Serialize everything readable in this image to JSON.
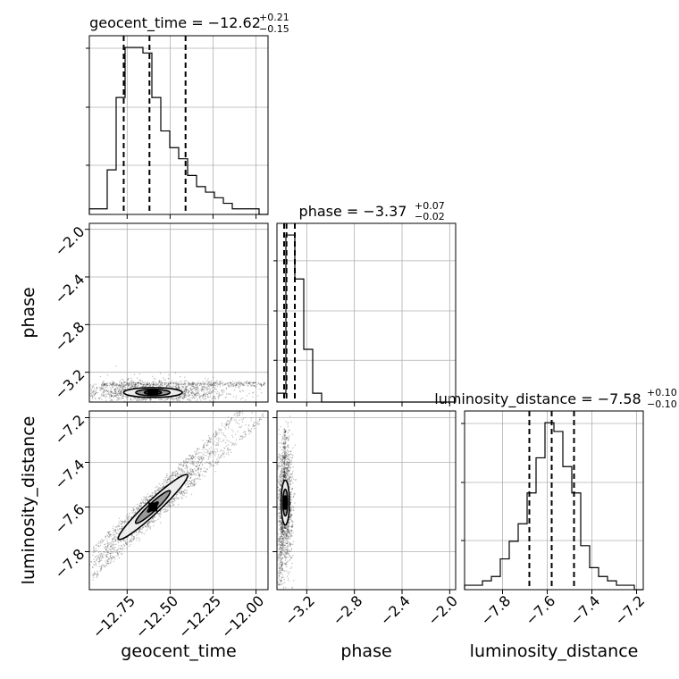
{
  "chart_data": {
    "type": "corner",
    "parameters": [
      "geocent_time",
      "phase",
      "luminosity_distance"
    ],
    "grid": true,
    "panels": {
      "geocent_time": {
        "range": [
          -12.97,
          -11.93
        ],
        "title": {
          "main": "geocent_time = −12.62",
          "plus": "+0.21",
          "minus": "−0.15"
        },
        "quantiles": [
          -12.77,
          -12.62,
          -12.41
        ],
        "hist_start": -12.97,
        "hist_step": 0.052,
        "hist_counts": [
          1,
          1,
          8,
          21,
          30,
          30,
          29,
          21,
          15,
          12,
          10,
          7,
          5,
          4,
          3,
          2,
          1,
          1,
          1,
          0
        ],
        "xticks": [
          -12.75,
          -12.5,
          -12.25,
          -12.0
        ],
        "xtick_labels": [
          "−12.75",
          "−12.50",
          "−12.25",
          "−12.00"
        ]
      },
      "phase": {
        "range": [
          -3.45,
          -1.95
        ],
        "title": {
          "main": "phase = −3.37",
          "plus": "+0.07",
          "minus": "−0.02"
        },
        "quantiles": [
          -3.39,
          -3.37,
          -3.3
        ],
        "hist_start": -3.45,
        "hist_step": 0.075,
        "hist_counts": [
          2,
          38,
          28,
          12,
          2,
          0,
          0,
          0,
          0,
          0,
          0,
          0,
          0,
          0,
          0,
          0,
          0,
          0,
          0,
          0
        ],
        "xticks": [
          -3.2,
          -2.8,
          -2.4,
          -2.0
        ],
        "xtick_labels": [
          "−3.2",
          "−2.8",
          "−2.4",
          "−2.0"
        ],
        "yticks": [
          -2.0,
          -2.4,
          -2.8,
          -3.2
        ],
        "ytick_labels": [
          "−2.0",
          "−2.4",
          "−2.8",
          "−3.2"
        ]
      },
      "luminosity_distance": {
        "range": [
          -7.97,
          -7.17
        ],
        "title": {
          "main": "luminosity_distance = −7.58",
          "plus": "+0.10",
          "minus": "−0.10"
        },
        "quantiles": [
          -7.68,
          -7.58,
          -7.48
        ],
        "hist_start": -7.97,
        "hist_step": 0.04,
        "hist_counts": [
          1,
          1,
          2,
          3,
          7,
          11,
          15,
          22,
          30,
          38,
          36,
          28,
          22,
          10,
          5,
          3,
          2,
          1,
          1,
          0
        ],
        "xticks": [
          -7.8,
          -7.6,
          -7.4,
          -7.2
        ],
        "xtick_labels": [
          "−7.8",
          "−7.6",
          "−7.4",
          "−7.2"
        ],
        "yticks": [
          -7.2,
          -7.4,
          -7.6,
          -7.8
        ],
        "ytick_labels": [
          "−7.2",
          "−7.4",
          "−7.6",
          "−7.8"
        ]
      }
    },
    "xlabels": [
      "geocent_time",
      "phase",
      "luminosity_distance"
    ],
    "ylabels": [
      "phase",
      "luminosity_distance"
    ],
    "contours": {
      "geocent_time-phase": {
        "center": [
          -12.6,
          -3.37
        ],
        "levels": [
          {
            "sx": 0.05,
            "sy": 0.014
          },
          {
            "sx": 0.1,
            "sy": 0.027
          },
          {
            "sx": 0.17,
            "sy": 0.041
          }
        ],
        "colors": [
          "#000000",
          "#4a4a4a",
          "#999999",
          "#ececec"
        ]
      },
      "geocent_time-luminosity_distance": {
        "center": [
          -12.6,
          -7.6
        ],
        "slope": 0.72,
        "levels": [
          {
            "su": 0.03,
            "sv": 0.008
          },
          {
            "su": 0.1,
            "sv": 0.018
          },
          {
            "su": 0.2,
            "sv": 0.03
          }
        ],
        "colors": [
          "#000000",
          "#4a4a4a",
          "#999999",
          "#ececec"
        ]
      },
      "phase-luminosity_distance": {
        "center": [
          -3.38,
          -7.58
        ],
        "levels": [
          {
            "sx": 0.008,
            "sy": 0.03
          },
          {
            "sx": 0.02,
            "sy": 0.06
          },
          {
            "sx": 0.035,
            "sy": 0.1
          }
        ],
        "colors": [
          "#000000",
          "#4a4a4a",
          "#999999",
          "#ececec"
        ]
      }
    }
  }
}
